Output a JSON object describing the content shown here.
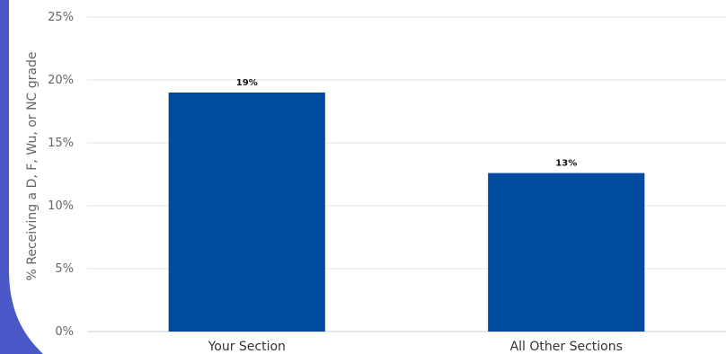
{
  "colors": {
    "bar": "#004a9f",
    "accent": "#4a58c8",
    "grid": "#e6e6e6"
  },
  "chart_data": {
    "type": "bar",
    "categories": [
      "Your Section",
      "All Other Sections"
    ],
    "values": [
      19,
      12.6
    ],
    "data_labels": [
      "19%",
      "13%"
    ],
    "title": "",
    "xlabel": "",
    "ylabel": "% Receiving a D, F, Wu, or NC grade",
    "ylim": [
      0,
      25
    ],
    "yticks": [
      0,
      5,
      10,
      15,
      20,
      25
    ],
    "ytick_labels": [
      "0%",
      "5%",
      "10%",
      "15%",
      "20%",
      "25%"
    ],
    "grid": true,
    "legend": "none"
  }
}
